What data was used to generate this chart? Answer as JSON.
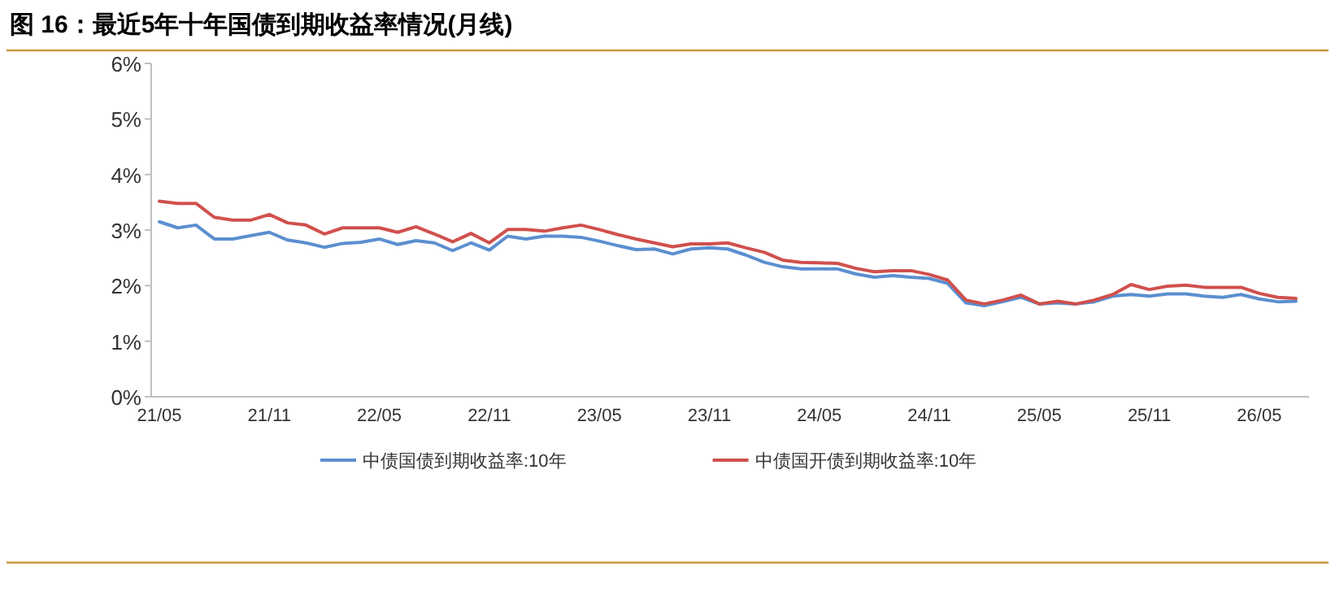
{
  "chart_data": {
    "type": "line",
    "title": "图 16：最近5年十年国债到期收益率情况(月线)",
    "categories": [
      "21/05",
      null,
      null,
      null,
      null,
      null,
      "21/11",
      null,
      null,
      null,
      null,
      null,
      "22/05",
      null,
      null,
      null,
      null,
      null,
      "22/11",
      null,
      null,
      null,
      null,
      null,
      "23/05",
      null,
      null,
      null,
      null,
      null,
      "23/11",
      null,
      null,
      null,
      null,
      null,
      "24/05",
      null,
      null,
      null,
      null,
      null,
      "24/11",
      null,
      null,
      null,
      null,
      null,
      "25/05",
      null,
      null,
      null,
      null,
      null,
      "25/11",
      null,
      null,
      null,
      null,
      null,
      "26/05",
      null,
      null
    ],
    "series": [
      {
        "name": "中债国债到期收益率:10年",
        "color": "#5b8fd0",
        "values": [
          3.15,
          3.04,
          3.09,
          2.84,
          2.84,
          2.9,
          2.96,
          2.82,
          2.77,
          2.69,
          2.76,
          2.78,
          2.84,
          2.74,
          2.81,
          2.77,
          2.63,
          2.77,
          2.64,
          2.89,
          2.84,
          2.89,
          2.89,
          2.87,
          2.8,
          2.72,
          2.65,
          2.66,
          2.57,
          2.66,
          2.68,
          2.66,
          2.55,
          2.42,
          2.34,
          2.3,
          2.3,
          2.3,
          2.21,
          2.15,
          2.18,
          2.15,
          2.13,
          2.04,
          1.69,
          1.64,
          1.71,
          1.79,
          1.67,
          1.69,
          1.67,
          1.71,
          1.81,
          1.84,
          1.81,
          1.85,
          1.85,
          1.81,
          1.79,
          1.84,
          1.76,
          1.71,
          1.72
        ]
      },
      {
        "name": "中债国开债到期收益率:10年",
        "color": "#d0504d",
        "values": [
          3.52,
          3.48,
          3.48,
          3.23,
          3.18,
          3.18,
          3.28,
          3.13,
          3.09,
          2.93,
          3.04,
          3.04,
          3.04,
          2.96,
          3.06,
          2.93,
          2.79,
          2.94,
          2.77,
          3.01,
          3.01,
          2.98,
          3.04,
          3.09,
          3.01,
          2.92,
          2.84,
          2.77,
          2.7,
          2.75,
          2.75,
          2.77,
          2.68,
          2.6,
          2.46,
          2.42,
          2.41,
          2.4,
          2.31,
          2.25,
          2.27,
          2.27,
          2.2,
          2.1,
          1.74,
          1.67,
          1.74,
          1.83,
          1.67,
          1.72,
          1.67,
          1.74,
          1.84,
          2.02,
          1.93,
          1.99,
          2.01,
          1.97,
          1.97,
          1.97,
          1.86,
          1.79,
          1.77
        ]
      }
    ],
    "ylim": [
      0,
      6
    ],
    "yticks": [
      {
        "value": 0,
        "label": "0%"
      },
      {
        "value": 1,
        "label": "1%"
      },
      {
        "value": 2,
        "label": "2%"
      },
      {
        "value": 3,
        "label": "3%"
      },
      {
        "value": 4,
        "label": "4%"
      },
      {
        "value": 5,
        "label": "5%"
      },
      {
        "value": 6,
        "label": "6%"
      }
    ],
    "legend": "bottom",
    "marker": "none",
    "line_style": "solid"
  }
}
